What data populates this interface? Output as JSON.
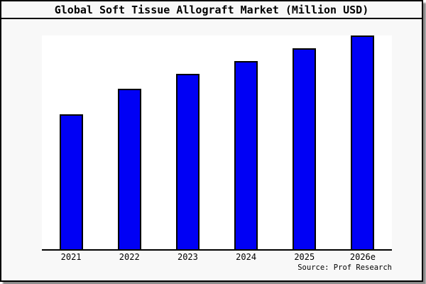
{
  "header": {
    "title": "Global Soft Tissue Allograft Market (Million USD)"
  },
  "footer": {
    "source": "Source: Prof Research"
  },
  "colors": {
    "background": "#f8f8f8",
    "plot_background": "#ffffff",
    "bar_fill": "#0000f5",
    "bar_border": "#000000",
    "frame_border": "#000000",
    "shadow": "#8a8a8a"
  },
  "chart_data": {
    "type": "bar",
    "title": "Global Soft Tissue Allograft Market (Million USD)",
    "categories": [
      "2021",
      "2022",
      "2023",
      "2024",
      "2025",
      "2026e"
    ],
    "values": [
      63,
      75,
      82,
      88,
      94,
      100
    ],
    "xlabel": "",
    "ylabel": "",
    "ylim": [
      0,
      100
    ],
    "grid": false,
    "legend": false,
    "axes_shown": [
      "bottom"
    ],
    "note": "No y-axis or value labels are shown; values are estimated as percent of the tallest bar (2026e = 100)."
  }
}
